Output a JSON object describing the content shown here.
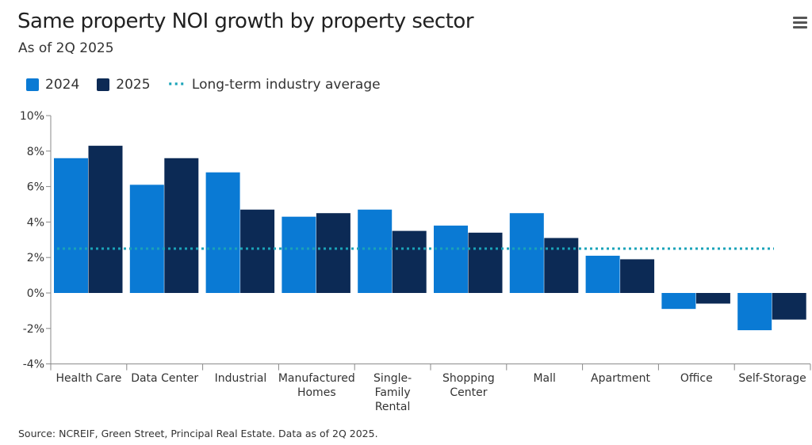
{
  "header": {
    "title": "Same property NOI growth by property sector",
    "subtitle": "As of 2Q 2025",
    "menu_icon": "hamburger-menu-icon"
  },
  "legend": {
    "s2024": "2024",
    "s2025": "2025",
    "avg": "Long-term industry average"
  },
  "source": "Source: NCREIF, Green Street, Principal Real Estate. Data as of 2Q 2025.",
  "colors": {
    "s2024": "#0a7ad4",
    "s2025": "#0c2a55",
    "avg": "#1aa3b8"
  },
  "chart_data": {
    "type": "bar",
    "title": "Same property NOI growth by property sector",
    "subtitle": "As of 2Q 2025",
    "categories": [
      [
        "Health Care"
      ],
      [
        "Data Center"
      ],
      [
        "Industrial"
      ],
      [
        "Manufactured",
        "Homes"
      ],
      [
        "Single-",
        "Family",
        "Rental"
      ],
      [
        "Shopping",
        "Center"
      ],
      [
        "Mall"
      ],
      [
        "Apartment"
      ],
      [
        "Office"
      ],
      [
        "Self-Storage"
      ]
    ],
    "series": [
      {
        "name": "2024",
        "values": [
          7.6,
          6.1,
          6.8,
          4.3,
          4.7,
          3.8,
          4.5,
          2.1,
          -0.9,
          -2.1
        ]
      },
      {
        "name": "2025",
        "values": [
          8.3,
          7.6,
          4.7,
          4.5,
          3.5,
          3.4,
          3.1,
          1.9,
          -0.6,
          -1.5
        ]
      }
    ],
    "reference_line": {
      "name": "Long-term industry average",
      "value": 2.5
    },
    "ylim": [
      -4,
      10
    ],
    "yticks": [
      10,
      8,
      6,
      4,
      2,
      0,
      -2,
      -4
    ],
    "ytick_labels": [
      "10%",
      "8%",
      "6%",
      "4%",
      "2%",
      "0%",
      "-2%",
      "-4%"
    ],
    "legend_position": "top-left",
    "grid": false
  }
}
